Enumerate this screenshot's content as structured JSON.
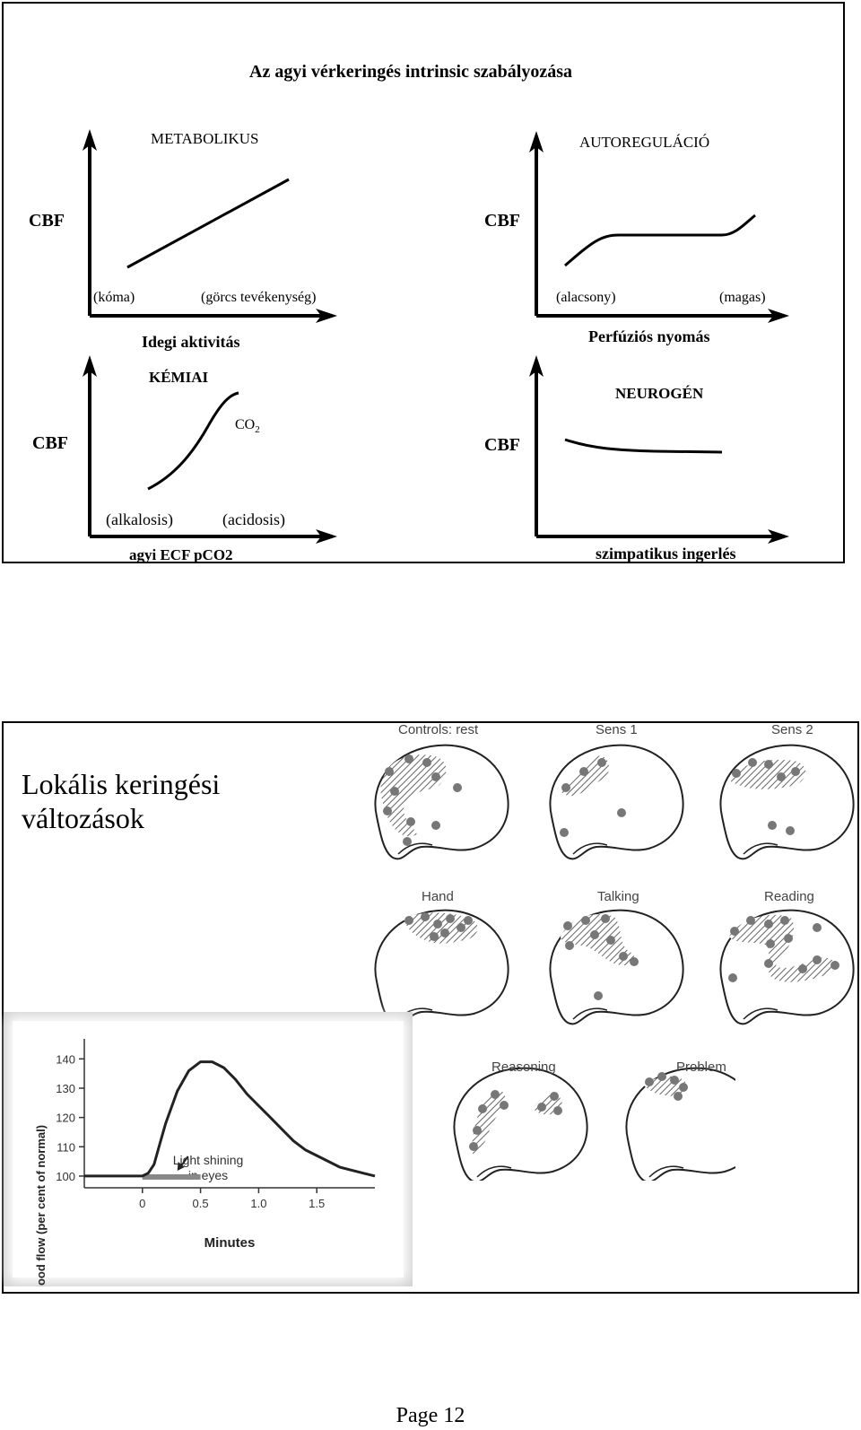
{
  "slide1": {
    "title": "Az agyi vérkeringés intrinsic szabályozása",
    "panels": {
      "metabolic": {
        "heading": "METABOLIKUS",
        "ylabel": "CBF",
        "left_note": "(kóma)",
        "right_note": "(görcs tevékenység)",
        "xlabel": "Idegi aktivitás"
      },
      "autoreg": {
        "heading": "AUTOREGULÁCIÓ",
        "ylabel": "CBF",
        "left_note": "(alacsony)",
        "right_note": "(magas)",
        "xlabel": "Perfúziós nyomás"
      },
      "chemical": {
        "heading": "KÉMIAI",
        "ylabel": "CBF",
        "curve_label": "CO",
        "curve_label_sub": "2",
        "left_note": "(alkalosis)",
        "right_note": "(acidosis)",
        "xlabel": "agyi ECF pCO2"
      },
      "neurogenic": {
        "heading": "NEUROGÉN",
        "ylabel": "CBF",
        "xlabel": "szimpatikus ingerlés"
      }
    }
  },
  "slide2": {
    "title_line1": "Lokális keringési",
    "title_line2": "változások",
    "brains": [
      {
        "label": "Controls: rest"
      },
      {
        "label": "Sens 1"
      },
      {
        "label": "Sens 2"
      },
      {
        "label": "Hand"
      },
      {
        "label": "Talking"
      },
      {
        "label": "Reading"
      },
      {
        "label": "Reasoning"
      },
      {
        "label": "Problem"
      }
    ],
    "flow_chart": {
      "ylabel": "Blood flow (per cent of normal)",
      "xlabel": "Minutes",
      "annotation_line1": "Light shining",
      "annotation_line2": "in eyes",
      "y_ticks": [
        "140",
        "130",
        "120",
        "110",
        "100"
      ],
      "x_ticks": [
        "0",
        "0.5",
        "1.0",
        "1.5"
      ]
    }
  },
  "chart_data": {
    "type": "line",
    "xlabel": "Minutes",
    "ylabel": "Blood flow (per cent of normal)",
    "xlim": [
      -0.5,
      2.0
    ],
    "ylim": [
      96,
      145
    ],
    "series": [
      {
        "x": [
          -0.5,
          -0.2,
          0.0,
          0.05,
          0.1,
          0.15,
          0.2,
          0.3,
          0.4,
          0.5,
          0.6,
          0.7,
          0.8,
          0.9,
          1.0,
          1.1,
          1.2,
          1.3,
          1.4,
          1.5,
          1.6,
          1.7,
          1.8,
          1.9,
          2.0
        ],
        "y": [
          100,
          100,
          100,
          101,
          104,
          111,
          118,
          129,
          136,
          139,
          139,
          137,
          133,
          128,
          124,
          120,
          116,
          112,
          109,
          107,
          105,
          103,
          102,
          101,
          100
        ]
      }
    ],
    "stimulus_bar": {
      "x": [
        0.0,
        0.5
      ]
    }
  },
  "footer": {
    "page": "Page 12"
  }
}
